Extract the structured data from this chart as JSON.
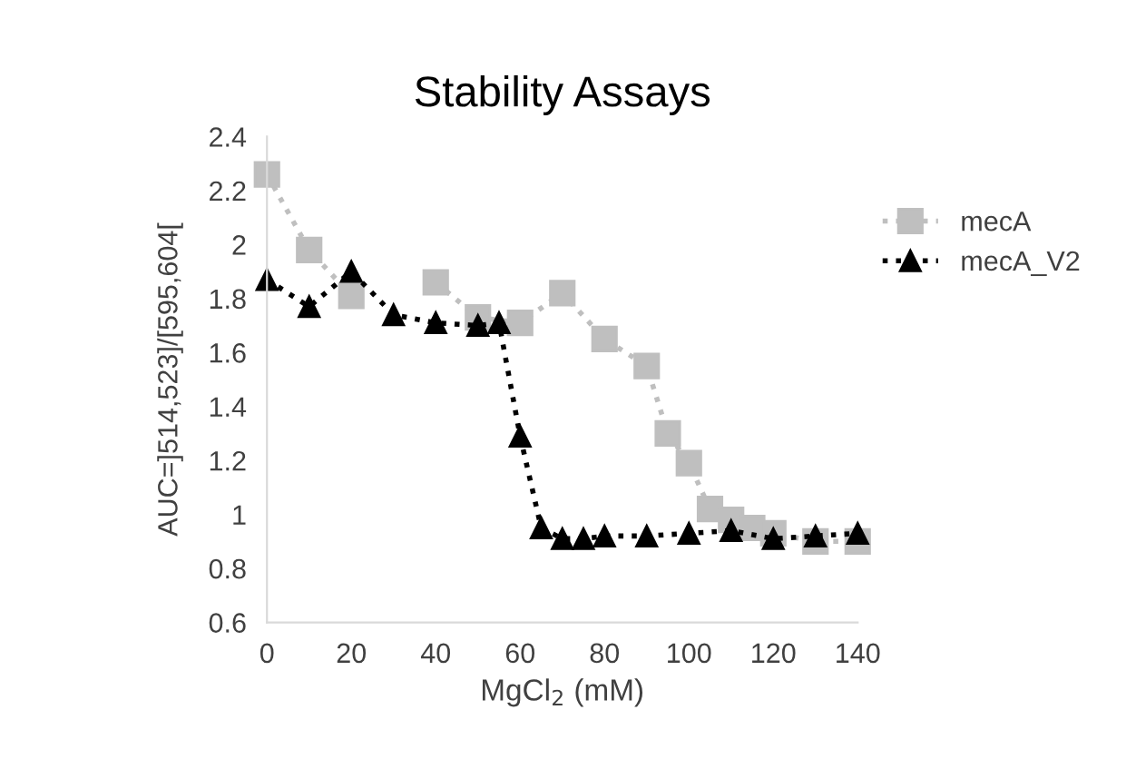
{
  "chart_data": {
    "type": "line",
    "title": "Stability Assays",
    "xlabel": "MgCl$_{2}$ (mM)",
    "ylabel": "AUC=]514,523]/[595,604[",
    "xlim": [
      0,
      140
    ],
    "xticks": [
      0,
      20,
      40,
      60,
      80,
      100,
      120,
      140
    ],
    "ylim": [
      0.6,
      2.4
    ],
    "yticks": [
      0.6,
      0.8,
      1,
      1.2,
      1.4,
      1.6,
      1.8,
      2,
      2.2,
      2.4
    ],
    "grid": false,
    "legend": "right",
    "line_style": "dotted",
    "series": [
      {
        "name": "mecA",
        "color": "#bfbfbf",
        "marker": "square",
        "x": [
          0,
          10,
          20,
          30,
          40,
          50,
          60,
          70,
          80,
          90,
          95,
          100,
          105,
          110,
          115,
          120,
          130,
          140
        ],
        "values": [
          2.26,
          1.98,
          1.81,
          null,
          1.86,
          1.73,
          1.71,
          1.82,
          1.65,
          1.55,
          1.3,
          1.19,
          1.02,
          0.98,
          0.95,
          0.93,
          0.9,
          0.9
        ]
      },
      {
        "name": "mecA_V2",
        "color": "#000000",
        "marker": "triangle",
        "x": [
          0,
          10,
          20,
          30,
          40,
          50,
          55,
          60,
          65,
          70,
          75,
          80,
          90,
          100,
          110,
          120,
          130,
          140
        ],
        "values": [
          1.87,
          1.77,
          1.9,
          1.74,
          1.71,
          1.7,
          1.71,
          1.29,
          0.95,
          0.91,
          0.91,
          0.92,
          0.92,
          0.93,
          0.94,
          0.91,
          0.92,
          0.93
        ]
      }
    ]
  }
}
